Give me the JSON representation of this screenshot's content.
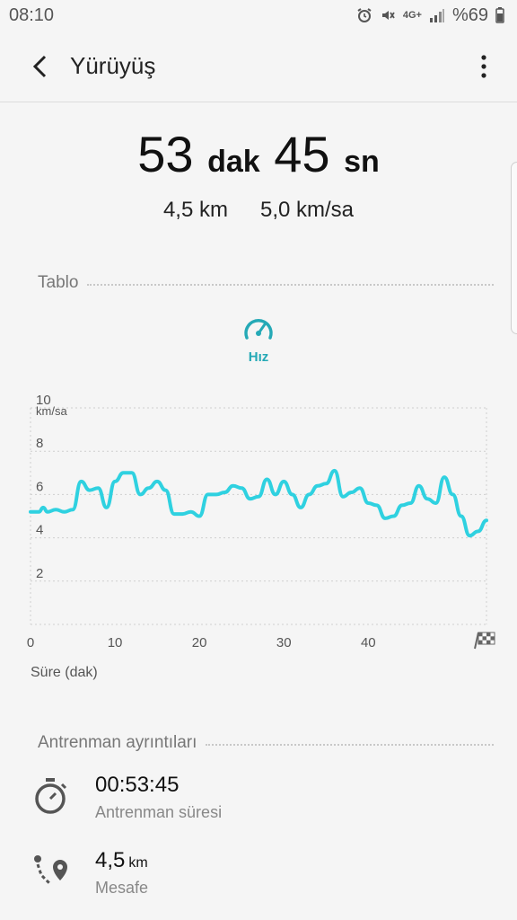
{
  "status": {
    "time": "08:10",
    "network": "4G+",
    "battery": "%69"
  },
  "header": {
    "title": "Yürüyüş"
  },
  "summary": {
    "minutes": "53",
    "minutes_unit": "dak",
    "seconds": "45",
    "seconds_unit": "sn",
    "distance": "4,5 km",
    "speed": "5,0 km/sa"
  },
  "chart_section": {
    "title": "Tablo",
    "metric_label": "Hız"
  },
  "chart_data": {
    "type": "line",
    "ylabel": "km/sa",
    "xlabel": "Süre (dak)",
    "ylim": [
      0,
      10
    ],
    "xlim": [
      0,
      54
    ],
    "yticks": [
      "2",
      "4",
      "6",
      "8",
      "10"
    ],
    "ytick_values": [
      2,
      4,
      6,
      8,
      10
    ],
    "xticks": [
      "0",
      "10",
      "20",
      "30",
      "40"
    ],
    "xtick_values": [
      0,
      10,
      20,
      30,
      40
    ],
    "grid": true,
    "series": [
      {
        "color": "#2fd1e0",
        "x": [
          0,
          1,
          1.5,
          2,
          3,
          4,
          5,
          6,
          7,
          8,
          9,
          10,
          11,
          12,
          13,
          14,
          15,
          16,
          17,
          18,
          19,
          20,
          21,
          22,
          23,
          24,
          25,
          26,
          27,
          28,
          29,
          30,
          31,
          32,
          33,
          34,
          35,
          36,
          37,
          38,
          39,
          40,
          41,
          42,
          43,
          44,
          45,
          46,
          47,
          48,
          49,
          50,
          51,
          52,
          53,
          54
        ],
        "y": [
          5.2,
          5.2,
          5.4,
          5.2,
          5.3,
          5.2,
          5.3,
          6.6,
          6.2,
          6.3,
          5.4,
          6.6,
          7.0,
          7.0,
          6.0,
          6.3,
          6.6,
          6.2,
          5.1,
          5.1,
          5.2,
          5.0,
          6.0,
          6.0,
          6.1,
          6.4,
          6.3,
          5.8,
          5.9,
          6.7,
          6.0,
          6.6,
          6.0,
          5.4,
          6.0,
          6.4,
          6.5,
          7.1,
          5.9,
          6.1,
          6.3,
          5.6,
          5.5,
          4.9,
          5.0,
          5.5,
          5.6,
          6.4,
          5.8,
          5.6,
          6.8,
          6.0,
          5.0,
          4.1,
          4.3,
          4.8
        ]
      }
    ]
  },
  "details_section": {
    "title": "Antrenman ayrıntıları",
    "duration_value": "00:53:45",
    "duration_caption": "Antrenman süresi",
    "distance_value": "4,5",
    "distance_unit": "km",
    "distance_caption": "Mesafe"
  },
  "icons": {
    "back": "back-arrow-icon",
    "more": "more-vertical-icon",
    "speed": "speedometer-icon",
    "finish": "finish-flag-icon",
    "stopwatch": "stopwatch-icon",
    "route": "route-pin-icon"
  },
  "colors": {
    "accent": "#25a9b6",
    "line": "#2fd1e0"
  }
}
